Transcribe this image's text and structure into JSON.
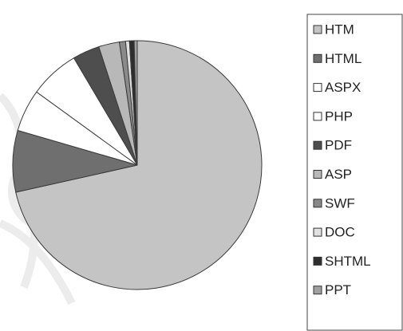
{
  "chart_data": {
    "type": "pie",
    "categories": [
      "HTM",
      "HTML",
      "ASPX",
      "PHP",
      "PDF",
      "ASP",
      "SWF",
      "DOC",
      "SHTML",
      "PPT"
    ],
    "values": [
      71.5,
      8,
      5.5,
      6.5,
      3.5,
      2.7,
      0.8,
      0.5,
      0.6,
      0.4
    ],
    "colors": [
      "#c4c4c4",
      "#6f6f6f",
      "#ffffff",
      "#ffffff",
      "#4e4e4e",
      "#b8b8b8",
      "#8a8a8a",
      "#e0e0e0",
      "#2e2e2e",
      "#a0a0a0"
    ],
    "legend": "right"
  }
}
